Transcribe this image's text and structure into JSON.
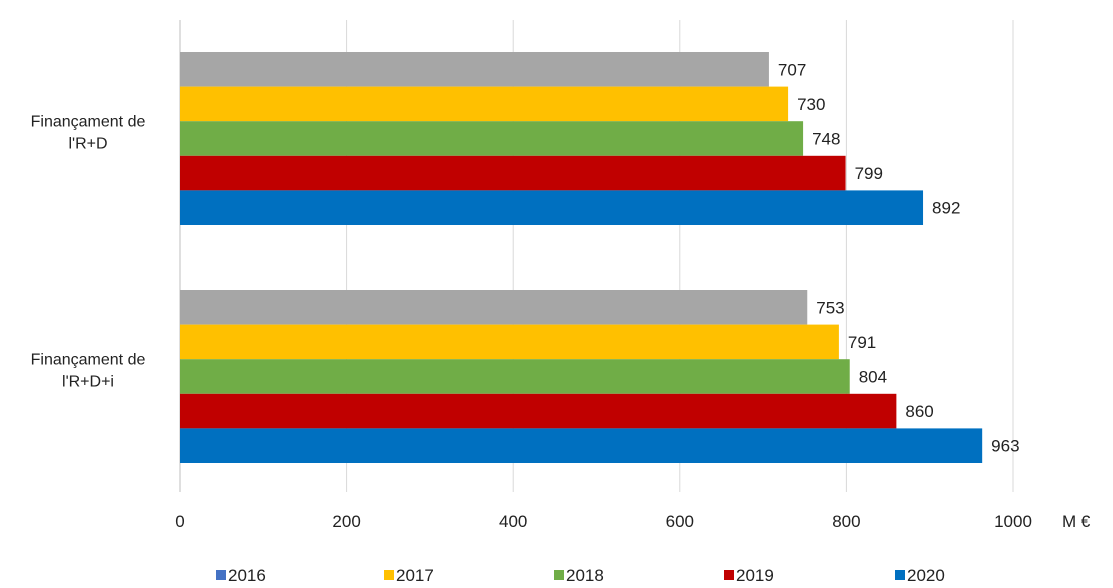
{
  "chart_data": {
    "type": "bar",
    "orientation": "horizontal",
    "categories": [
      "Finançament de l'R+D",
      "Finançament de l'R+D+i"
    ],
    "category_lines": [
      [
        "Finançament de",
        "l'R+D"
      ],
      [
        "Finançament de",
        "l'R+D+i"
      ]
    ],
    "series": [
      {
        "name": "2016",
        "values": [
          707,
          753
        ],
        "color": "#a6a6a6",
        "legend_color": "#4472c4"
      },
      {
        "name": "2017",
        "values": [
          730,
          791
        ],
        "color": "#ffc000",
        "legend_color": "#ffc000"
      },
      {
        "name": "2018",
        "values": [
          748,
          804
        ],
        "color": "#70ad47",
        "legend_color": "#70ad47"
      },
      {
        "name": "2019",
        "values": [
          799,
          860
        ],
        "color": "#c00000",
        "legend_color": "#c00000"
      },
      {
        "name": "2020",
        "values": [
          892,
          963
        ],
        "color": "#0070c0",
        "legend_color": "#0070c0"
      }
    ],
    "xlim": [
      0,
      1000
    ],
    "xticks": [
      0,
      200,
      400,
      600,
      800,
      1000
    ],
    "xlabel": "M €",
    "grid": true,
    "legend_position": "bottom"
  }
}
